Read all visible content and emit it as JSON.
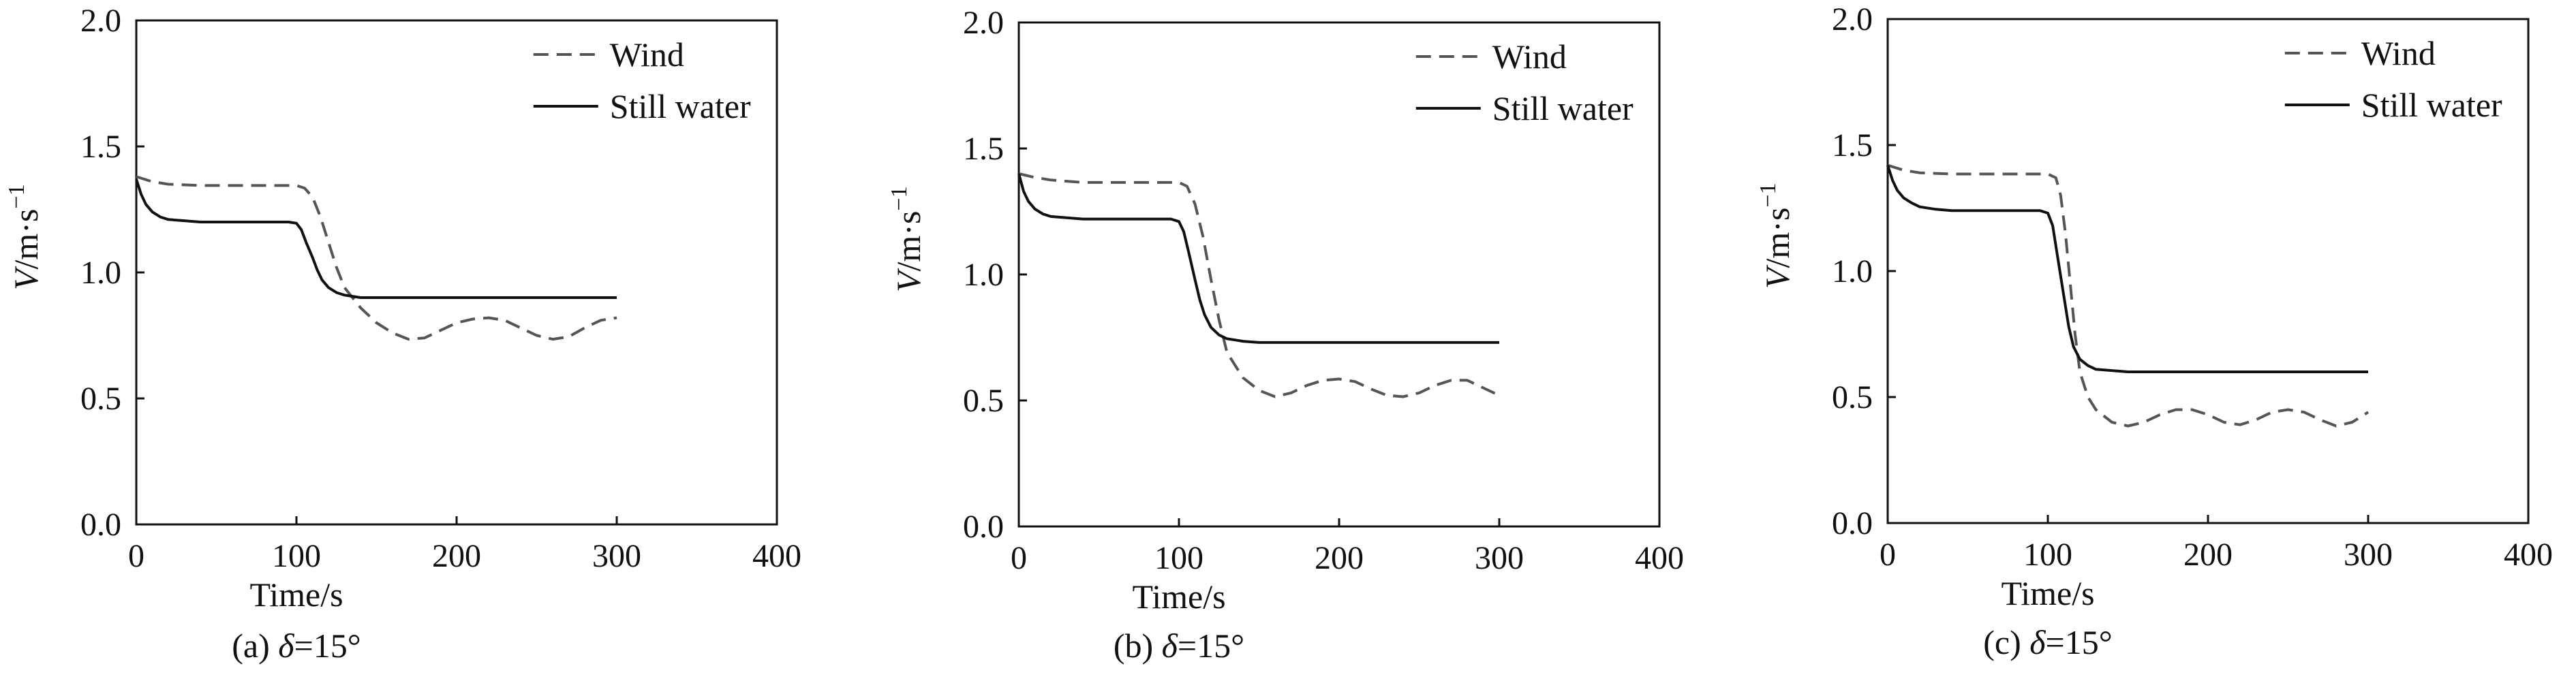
{
  "chart_data": [
    {
      "type": "line",
      "caption_prefix": "(a) ",
      "caption_symbol": "δ",
      "caption_suffix": "=15°",
      "xlabel": "Time/s",
      "ylabel_main": "V",
      "ylabel_units": "/m·s",
      "ylabel_exp": "−1",
      "xlim": [
        0,
        400
      ],
      "ylim": [
        0,
        2.0
      ],
      "xticks": [
        0,
        100,
        200,
        300,
        400
      ],
      "yticks": [
        0.0,
        0.5,
        1.0,
        1.5,
        2.0
      ],
      "xtick_labels": [
        "0",
        "100",
        "200",
        "300",
        "400"
      ],
      "ytick_labels": [
        "0.0",
        "0.5",
        "1.0",
        "1.5",
        "2.0"
      ],
      "legend_position": "top-right",
      "series": [
        {
          "name": "Wind",
          "style": "dashed",
          "color": "#555555",
          "x": [
            0,
            10,
            20,
            40,
            60,
            80,
            100,
            105,
            110,
            115,
            120,
            125,
            130,
            140,
            150,
            160,
            170,
            180,
            190,
            200,
            210,
            220,
            230,
            240,
            250,
            260,
            270,
            280,
            290,
            300
          ],
          "y": [
            1.38,
            1.36,
            1.35,
            1.345,
            1.345,
            1.345,
            1.345,
            1.335,
            1.3,
            1.22,
            1.12,
            1.02,
            0.94,
            0.86,
            0.8,
            0.76,
            0.735,
            0.74,
            0.77,
            0.8,
            0.815,
            0.82,
            0.81,
            0.78,
            0.75,
            0.735,
            0.745,
            0.78,
            0.81,
            0.82
          ]
        },
        {
          "name": "Still water",
          "style": "solid",
          "color": "#111111",
          "x": [
            0,
            3,
            6,
            10,
            15,
            20,
            30,
            40,
            60,
            80,
            95,
            100,
            103,
            106,
            110,
            113,
            116,
            120,
            125,
            130,
            135,
            140,
            150,
            160,
            180,
            200,
            250,
            300
          ],
          "y": [
            1.37,
            1.31,
            1.27,
            1.24,
            1.22,
            1.21,
            1.205,
            1.2,
            1.2,
            1.2,
            1.2,
            1.195,
            1.17,
            1.12,
            1.06,
            1.01,
            0.97,
            0.94,
            0.92,
            0.91,
            0.905,
            0.9,
            0.9,
            0.9,
            0.9,
            0.9,
            0.9,
            0.9
          ]
        }
      ]
    },
    {
      "type": "line",
      "caption_prefix": "(b) ",
      "caption_symbol": "δ",
      "caption_suffix": "=15°",
      "xlabel": "Time/s",
      "ylabel_main": "V",
      "ylabel_units": "/m·s",
      "ylabel_exp": "−1",
      "xlim": [
        0,
        400
      ],
      "ylim": [
        0,
        2.0
      ],
      "xticks": [
        0,
        100,
        200,
        300,
        400
      ],
      "yticks": [
        0.0,
        0.5,
        1.0,
        1.5,
        2.0
      ],
      "xtick_labels": [
        "0",
        "100",
        "200",
        "300",
        "400"
      ],
      "ytick_labels": [
        "0.0",
        "0.5",
        "1.0",
        "1.5",
        "2.0"
      ],
      "legend_position": "top-right",
      "series": [
        {
          "name": "Wind",
          "style": "dashed",
          "color": "#555555",
          "x": [
            0,
            10,
            20,
            40,
            60,
            80,
            100,
            105,
            110,
            115,
            120,
            125,
            130,
            140,
            150,
            160,
            170,
            180,
            190,
            200,
            210,
            220,
            230,
            240,
            250,
            260,
            270,
            280,
            290,
            300
          ],
          "y": [
            1.4,
            1.385,
            1.375,
            1.365,
            1.365,
            1.365,
            1.365,
            1.35,
            1.28,
            1.15,
            0.98,
            0.82,
            0.69,
            0.59,
            0.54,
            0.515,
            0.53,
            0.56,
            0.58,
            0.585,
            0.575,
            0.545,
            0.52,
            0.515,
            0.53,
            0.56,
            0.58,
            0.58,
            0.55,
            0.52
          ]
        },
        {
          "name": "Still water",
          "style": "solid",
          "color": "#111111",
          "x": [
            0,
            3,
            6,
            10,
            15,
            20,
            30,
            40,
            60,
            80,
            95,
            100,
            103,
            106,
            110,
            113,
            116,
            120,
            125,
            130,
            135,
            140,
            150,
            160,
            180,
            200,
            250,
            300
          ],
          "y": [
            1.4,
            1.33,
            1.29,
            1.26,
            1.24,
            1.23,
            1.225,
            1.22,
            1.22,
            1.22,
            1.22,
            1.21,
            1.17,
            1.09,
            0.98,
            0.9,
            0.84,
            0.79,
            0.76,
            0.745,
            0.74,
            0.735,
            0.73,
            0.73,
            0.73,
            0.73,
            0.73,
            0.73
          ]
        }
      ]
    },
    {
      "type": "line",
      "caption_prefix": "(c) ",
      "caption_symbol": "δ",
      "caption_suffix": "=15°",
      "xlabel": "Time/s",
      "ylabel_main": "V",
      "ylabel_units": "/m·s",
      "ylabel_exp": "−1",
      "xlim": [
        0,
        400
      ],
      "ylim": [
        0,
        2.0
      ],
      "xticks": [
        0,
        100,
        200,
        300,
        400
      ],
      "yticks": [
        0.0,
        0.5,
        1.0,
        1.5,
        2.0
      ],
      "xtick_labels": [
        "0",
        "100",
        "200",
        "300",
        "400"
      ],
      "ytick_labels": [
        "0.0",
        "0.5",
        "1.0",
        "1.5",
        "2.0"
      ],
      "legend_position": "top-right",
      "series": [
        {
          "name": "Wind",
          "style": "dashed",
          "color": "#555555",
          "x": [
            0,
            10,
            20,
            40,
            60,
            80,
            100,
            105,
            108,
            111,
            114,
            117,
            120,
            125,
            130,
            140,
            150,
            160,
            170,
            180,
            190,
            200,
            210,
            220,
            230,
            240,
            250,
            260,
            270,
            280,
            290,
            300
          ],
          "y": [
            1.42,
            1.4,
            1.39,
            1.385,
            1.385,
            1.385,
            1.385,
            1.37,
            1.3,
            1.15,
            0.95,
            0.75,
            0.6,
            0.5,
            0.45,
            0.4,
            0.385,
            0.4,
            0.43,
            0.45,
            0.45,
            0.43,
            0.4,
            0.39,
            0.41,
            0.44,
            0.45,
            0.44,
            0.41,
            0.385,
            0.4,
            0.44
          ]
        },
        {
          "name": "Still water",
          "style": "solid",
          "color": "#111111",
          "x": [
            0,
            3,
            6,
            10,
            15,
            20,
            30,
            40,
            60,
            80,
            95,
            100,
            103,
            106,
            110,
            113,
            116,
            120,
            125,
            130,
            140,
            150,
            160,
            180,
            200,
            250,
            300
          ],
          "y": [
            1.42,
            1.36,
            1.32,
            1.29,
            1.27,
            1.255,
            1.245,
            1.24,
            1.24,
            1.24,
            1.24,
            1.23,
            1.18,
            1.06,
            0.9,
            0.78,
            0.7,
            0.65,
            0.625,
            0.61,
            0.605,
            0.6,
            0.6,
            0.6,
            0.6,
            0.6,
            0.6
          ]
        }
      ]
    }
  ]
}
